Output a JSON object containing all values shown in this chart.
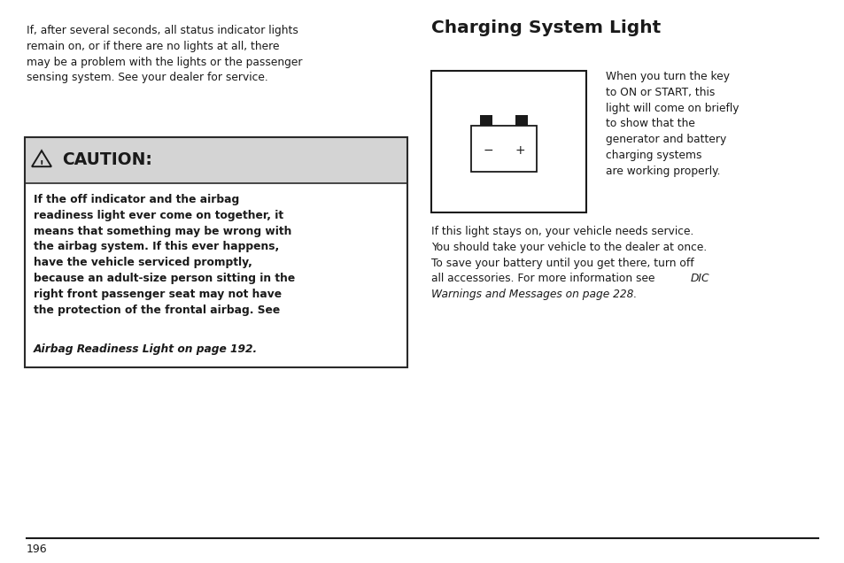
{
  "bg_color": "#ffffff",
  "text_color": "#1a1a1a",
  "page_number": "196",
  "intro_text": "If, after several seconds, all status indicator lights\nremain on, or if there are no lights at all, there\nmay be a problem with the lights or the passenger\nsensing system. See your dealer for service.",
  "caution_body_normal": "If the off indicator and the airbag\nreadiness light ever come on together, it\nmeans that something may be wrong with\nthe airbag system. If this ever happens,\nhave the vehicle serviced promptly,\nbecause an adult-size person sitting in the\nright front passenger seat may not have\nthe protection of the frontal airbag. See",
  "caution_body_italic": "Airbag Readiness Light on page 192.",
  "section_title": "Charging System Light",
  "right_body_text": "When you turn the key\nto ON or START, this\nlight will come on briefly\nto show that the\ngenerator and battery\ncharging systems\nare working properly.",
  "bottom_normal_1": "If this light stays on, your vehicle needs service.\nYou should take your vehicle to the dealer at once.\nTo save your battery until you get there, turn off\nall accessories. For more information see ",
  "bottom_italic": "DIC\nWarnings and Messages on page 228.",
  "caution_box_bg": "#d4d4d4",
  "caution_box_border": "#2a2a2a",
  "caution_inner_bg": "#ffffff"
}
